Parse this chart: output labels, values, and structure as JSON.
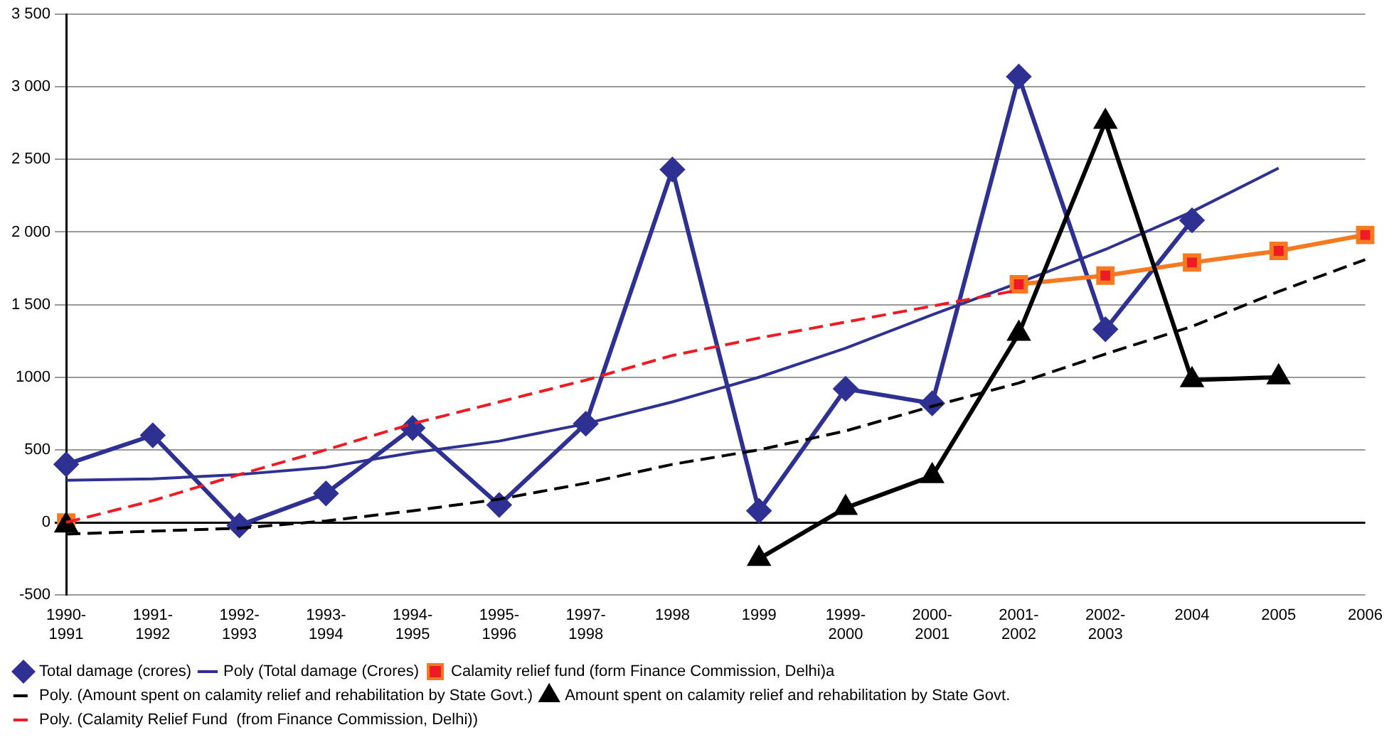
{
  "chart_data": {
    "type": "line",
    "categories": [
      "1990-1991",
      "1991-1992",
      "1992-1993",
      "1993-1994",
      "1994-1995",
      "1995-1996",
      "1997-1998",
      "1998",
      "1999",
      "1999-2000",
      "2000-2001",
      "2001-2002",
      "2002-2003",
      "2004",
      "2005",
      "2006"
    ],
    "series": [
      {
        "name": "Total damage (crores)",
        "color": "#2e3192",
        "marker": "diamond",
        "line_style": "solid",
        "values": [
          400,
          600,
          -20,
          200,
          650,
          120,
          680,
          2430,
          80,
          920,
          820,
          3070,
          1330,
          2080,
          null,
          null
        ]
      },
      {
        "name": "Poly (Total damage (Crores)",
        "color": "#2e3192",
        "marker": "none",
        "line_style": "solid",
        "values": [
          290,
          300,
          330,
          380,
          480,
          560,
          680,
          830,
          1000,
          1200,
          1430,
          1650,
          1880,
          2140,
          2440,
          null
        ]
      },
      {
        "name": "Calamity relief fund (form Finance Commission, Delhi)a",
        "color": "#f47920",
        "marker": "square",
        "line_style": "solid",
        "values": [
          0,
          null,
          null,
          null,
          null,
          null,
          null,
          null,
          null,
          null,
          null,
          1640,
          1700,
          1790,
          1870,
          1980
        ]
      },
      {
        "name": "Poly. (Amount spent on calamity relief and rehabilitation by State Govt.)",
        "color": "#000000",
        "marker": "none",
        "line_style": "dashed",
        "values": [
          -80,
          -60,
          -40,
          10,
          80,
          160,
          270,
          400,
          500,
          630,
          800,
          960,
          1160,
          1350,
          1590,
          1810
        ]
      },
      {
        "name": "Amount spent on calamity relief and rehabilitation by State Govt.",
        "color": "#000000",
        "marker": "triangle",
        "line_style": "solid",
        "values": [
          -20,
          null,
          null,
          null,
          null,
          null,
          null,
          null,
          -250,
          100,
          320,
          1300,
          2760,
          980,
          1000,
          null
        ]
      },
      {
        "name": "Poly. (Calamity Relief Fund  (from Finance Commission, Delhi))",
        "color": "#ed1c24",
        "marker": "none",
        "line_style": "dashed",
        "values": [
          0,
          150,
          330,
          500,
          680,
          830,
          980,
          1150,
          1270,
          1380,
          1490,
          1600,
          null,
          null,
          null,
          null
        ]
      }
    ],
    "ylim": [
      -500,
      3500
    ],
    "yticks": [
      -500,
      0,
      500,
      1000,
      {
        "value": 1500,
        "label": "1 500"
      },
      {
        "value": 2000,
        "label": "2 000"
      },
      {
        "value": 2500,
        "label": "2 500"
      },
      {
        "value": 3000,
        "label": "3 000"
      },
      {
        "value": 3500,
        "label": "3 500"
      }
    ],
    "grid": "y",
    "legend": "bottom"
  }
}
